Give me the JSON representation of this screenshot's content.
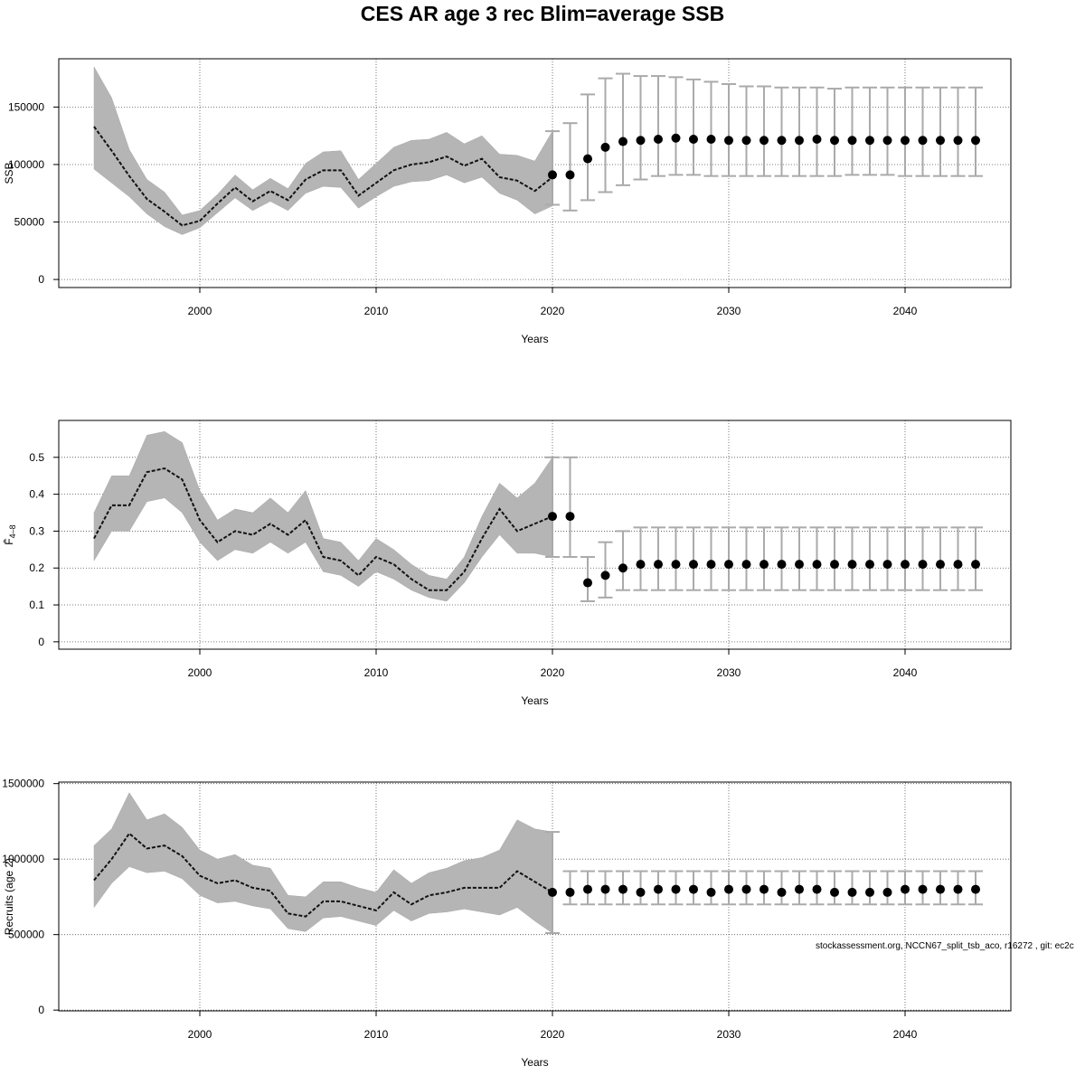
{
  "title": "CES AR age 3 rec Blim=average SSB",
  "footnote": "stockassessment.org, NCCN67_split_tsb_aco, r16272 , git: ec2c",
  "chart_data": [
    {
      "type": "line",
      "title": "",
      "xlabel": "Years",
      "ylabel": "SSB",
      "xlim": [
        1992,
        2046
      ],
      "ylim": [
        -7000,
        192000
      ],
      "xticks": [
        2000,
        2010,
        2020,
        2030,
        2040
      ],
      "yticks": [
        0,
        50000,
        100000,
        150000
      ],
      "grid": true,
      "historical": {
        "x": [
          1994,
          1995,
          1996,
          1997,
          1998,
          1999,
          2000,
          2001,
          2002,
          2003,
          2004,
          2005,
          2006,
          2007,
          2008,
          2009,
          2010,
          2011,
          2012,
          2013,
          2014,
          2015,
          2016,
          2017,
          2018,
          2019,
          2020
        ],
        "y": [
          133000,
          112000,
          90000,
          70000,
          59000,
          47000,
          51000,
          66000,
          80000,
          68000,
          77000,
          69000,
          87000,
          95000,
          95000,
          73000,
          84000,
          95000,
          100000,
          102000,
          107000,
          99000,
          105000,
          89000,
          86000,
          77000,
          89000
        ],
        "lower": [
          96000,
          84000,
          72000,
          57000,
          46000,
          39000,
          45000,
          58000,
          71000,
          60000,
          68000,
          60000,
          75000,
          81000,
          80000,
          62000,
          72000,
          81000,
          85000,
          86000,
          91000,
          84000,
          89000,
          75000,
          69000,
          57000,
          64000
        ],
        "upper": [
          185000,
          158000,
          113000,
          87000,
          76000,
          56000,
          60000,
          74000,
          91000,
          78000,
          88000,
          79000,
          101000,
          111000,
          112000,
          87000,
          101000,
          115000,
          121000,
          122000,
          128000,
          118000,
          125000,
          109000,
          108000,
          103000,
          129000
        ]
      },
      "forecast": {
        "x": [
          2020,
          2021,
          2022,
          2023,
          2024,
          2025,
          2026,
          2027,
          2028,
          2029,
          2030,
          2031,
          2032,
          2033,
          2034,
          2035,
          2036,
          2037,
          2038,
          2039,
          2040,
          2041,
          2042,
          2043,
          2044
        ],
        "y": [
          91000,
          91000,
          105000,
          115000,
          120000,
          121000,
          122000,
          123000,
          122000,
          122000,
          121000,
          121000,
          121000,
          121000,
          121000,
          122000,
          121000,
          121000,
          121000,
          121000,
          121000,
          121000,
          121000,
          121000,
          121000
        ],
        "lower": [
          65000,
          60000,
          69000,
          76000,
          82000,
          87000,
          90000,
          91000,
          91000,
          90000,
          90000,
          90000,
          90000,
          90000,
          90000,
          90000,
          90000,
          91000,
          91000,
          91000,
          90000,
          90000,
          90000,
          90000,
          90000
        ],
        "upper": [
          129000,
          136000,
          161000,
          175000,
          179000,
          177000,
          177000,
          176000,
          174000,
          172000,
          170000,
          168000,
          168000,
          167000,
          167000,
          167000,
          166000,
          167000,
          167000,
          167000,
          167000,
          167000,
          167000,
          167000,
          167000
        ]
      }
    },
    {
      "type": "line",
      "title": "",
      "xlabel": "Years",
      "ylabel": "F̄4–8",
      "xlim": [
        1992,
        2046
      ],
      "ylim": [
        -0.02,
        0.6
      ],
      "xticks": [
        2000,
        2010,
        2020,
        2030,
        2040
      ],
      "yticks": [
        0.0,
        0.1,
        0.2,
        0.3,
        0.4,
        0.5
      ],
      "grid": true,
      "historical": {
        "x": [
          1994,
          1995,
          1996,
          1997,
          1998,
          1999,
          2000,
          2001,
          2002,
          2003,
          2004,
          2005,
          2006,
          2007,
          2008,
          2009,
          2010,
          2011,
          2012,
          2013,
          2014,
          2015,
          2016,
          2017,
          2018,
          2019,
          2020
        ],
        "y": [
          0.28,
          0.37,
          0.37,
          0.46,
          0.47,
          0.44,
          0.33,
          0.27,
          0.3,
          0.29,
          0.32,
          0.29,
          0.33,
          0.23,
          0.22,
          0.18,
          0.23,
          0.21,
          0.17,
          0.14,
          0.14,
          0.19,
          0.28,
          0.36,
          0.3,
          0.32,
          0.34
        ],
        "lower": [
          0.22,
          0.3,
          0.3,
          0.38,
          0.39,
          0.35,
          0.27,
          0.22,
          0.25,
          0.24,
          0.27,
          0.24,
          0.27,
          0.19,
          0.18,
          0.15,
          0.19,
          0.17,
          0.14,
          0.12,
          0.11,
          0.16,
          0.23,
          0.29,
          0.24,
          0.24,
          0.23
        ],
        "upper": [
          0.35,
          0.45,
          0.45,
          0.56,
          0.57,
          0.54,
          0.41,
          0.33,
          0.36,
          0.35,
          0.39,
          0.35,
          0.41,
          0.28,
          0.27,
          0.22,
          0.28,
          0.25,
          0.21,
          0.18,
          0.17,
          0.23,
          0.34,
          0.43,
          0.39,
          0.43,
          0.5
        ]
      },
      "forecast": {
        "x": [
          2020,
          2021,
          2022,
          2023,
          2024,
          2025,
          2026,
          2027,
          2028,
          2029,
          2030,
          2031,
          2032,
          2033,
          2034,
          2035,
          2036,
          2037,
          2038,
          2039,
          2040,
          2041,
          2042,
          2043,
          2044
        ],
        "y": [
          0.34,
          0.34,
          0.16,
          0.18,
          0.2,
          0.21,
          0.21,
          0.21,
          0.21,
          0.21,
          0.21,
          0.21,
          0.21,
          0.21,
          0.21,
          0.21,
          0.21,
          0.21,
          0.21,
          0.21,
          0.21,
          0.21,
          0.21,
          0.21,
          0.21
        ],
        "lower": [
          0.23,
          0.23,
          0.11,
          0.12,
          0.14,
          0.14,
          0.14,
          0.14,
          0.14,
          0.14,
          0.14,
          0.14,
          0.14,
          0.14,
          0.14,
          0.14,
          0.14,
          0.14,
          0.14,
          0.14,
          0.14,
          0.14,
          0.14,
          0.14,
          0.14
        ],
        "upper": [
          0.5,
          0.5,
          0.23,
          0.27,
          0.3,
          0.31,
          0.31,
          0.31,
          0.31,
          0.31,
          0.31,
          0.31,
          0.31,
          0.31,
          0.31,
          0.31,
          0.31,
          0.31,
          0.31,
          0.31,
          0.31,
          0.31,
          0.31,
          0.31,
          0.31
        ]
      }
    },
    {
      "type": "line",
      "title": "",
      "xlabel": "Years",
      "ylabel": "Recruits (age 2)",
      "xlim": [
        1992,
        2046
      ],
      "ylim": [
        -5000,
        1510000
      ],
      "xticks": [
        2000,
        2010,
        2020,
        2030,
        2040
      ],
      "yticks": [
        0,
        500000,
        1000000,
        1500000
      ],
      "ytick_labels": [
        "0",
        "500000",
        "1000000",
        "1500000"
      ],
      "grid": true,
      "historical": {
        "x": [
          1994,
          1995,
          1996,
          1997,
          1998,
          1999,
          2000,
          2001,
          2002,
          2003,
          2004,
          2005,
          2006,
          2007,
          2008,
          2009,
          2010,
          2011,
          2012,
          2013,
          2014,
          2015,
          2016,
          2017,
          2018,
          2019,
          2020
        ],
        "y": [
          860000,
          1000000,
          1170000,
          1070000,
          1090000,
          1020000,
          890000,
          840000,
          860000,
          810000,
          790000,
          640000,
          620000,
          720000,
          720000,
          690000,
          660000,
          780000,
          700000,
          760000,
          780000,
          810000,
          810000,
          810000,
          920000,
          850000,
          780000
        ],
        "lower": [
          680000,
          840000,
          950000,
          910000,
          920000,
          870000,
          760000,
          710000,
          720000,
          690000,
          670000,
          540000,
          520000,
          610000,
          620000,
          590000,
          560000,
          660000,
          590000,
          640000,
          650000,
          670000,
          650000,
          630000,
          680000,
          590000,
          510000
        ],
        "upper": [
          1090000,
          1200000,
          1440000,
          1260000,
          1300000,
          1210000,
          1060000,
          1000000,
          1030000,
          960000,
          940000,
          760000,
          750000,
          850000,
          850000,
          810000,
          780000,
          930000,
          840000,
          910000,
          940000,
          990000,
          1010000,
          1060000,
          1260000,
          1200000,
          1180000
        ]
      },
      "forecast": {
        "x": [
          2020,
          2021,
          2022,
          2023,
          2024,
          2025,
          2026,
          2027,
          2028,
          2029,
          2030,
          2031,
          2032,
          2033,
          2034,
          2035,
          2036,
          2037,
          2038,
          2039,
          2040,
          2041,
          2042,
          2043,
          2044
        ],
        "y": [
          780000,
          780000,
          800000,
          800000,
          800000,
          780000,
          800000,
          800000,
          800000,
          780000,
          800000,
          800000,
          800000,
          780000,
          800000,
          800000,
          780000,
          780000,
          780000,
          780000,
          800000,
          800000,
          800000,
          800000,
          800000
        ],
        "lower": [
          510000,
          700000,
          700000,
          700000,
          700000,
          700000,
          700000,
          700000,
          700000,
          700000,
          700000,
          700000,
          700000,
          700000,
          700000,
          700000,
          700000,
          700000,
          700000,
          700000,
          700000,
          700000,
          700000,
          700000,
          700000
        ],
        "upper": [
          1180000,
          920000,
          920000,
          920000,
          920000,
          920000,
          920000,
          920000,
          920000,
          920000,
          920000,
          920000,
          920000,
          920000,
          920000,
          920000,
          920000,
          920000,
          920000,
          920000,
          920000,
          920000,
          920000,
          920000,
          920000
        ]
      }
    }
  ]
}
